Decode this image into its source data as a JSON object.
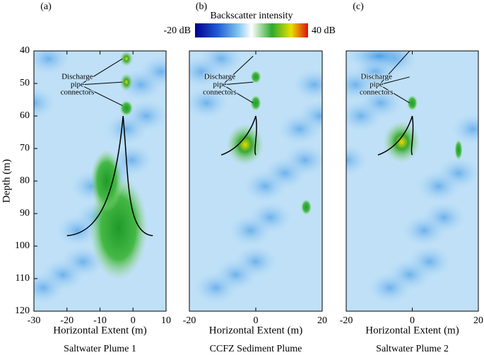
{
  "colorbar": {
    "title": "Backscatter intensity",
    "ticks": [
      {
        "value": -20,
        "label": "-20 dB"
      },
      {
        "value": 40,
        "label": "40 dB"
      }
    ]
  },
  "chart_data": [
    {
      "type": "heatmap",
      "panel_label": "(a)",
      "title": "Saltwater Plume 1",
      "xlabel": "Horizontal Extent (m)",
      "ylabel": "Depth (m)",
      "annotation": [
        "Discharge",
        "pipe",
        "connectors"
      ],
      "xlim": [
        -30,
        10
      ],
      "xticks": [
        -30,
        -20,
        -10,
        0,
        10
      ],
      "ylim": [
        40,
        120
      ],
      "yticks": [
        40,
        50,
        60,
        70,
        80,
        90,
        100,
        110,
        120
      ],
      "y_inverted": true
    },
    {
      "type": "heatmap",
      "panel_label": "(b)",
      "title": "CCFZ Sediment Plume",
      "xlabel": "Horizontal Extent (m)",
      "annotation": [
        "Discharge",
        "pipe",
        "connectors"
      ],
      "xlim": [
        -20,
        20
      ],
      "xticks": [
        -20,
        0,
        20
      ],
      "ylim": [
        40,
        120
      ],
      "y_inverted": true
    },
    {
      "type": "heatmap",
      "panel_label": "(c)",
      "title": "Saltwater Plume 2",
      "xlabel": "Horizontal Extent (m)",
      "annotation": [
        "Discharge",
        "pipe",
        "connectors"
      ],
      "xlim": [
        -20,
        20
      ],
      "xticks": [
        -20,
        0,
        20
      ],
      "ylim": [
        40,
        120
      ],
      "y_inverted": true
    }
  ]
}
